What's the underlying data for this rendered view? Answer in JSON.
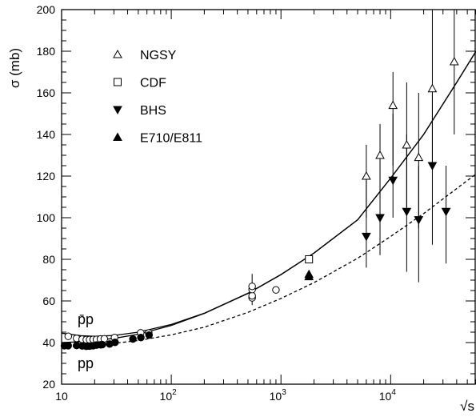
{
  "chart_data": {
    "type": "scatter",
    "title": "",
    "xlabel": "√s",
    "ylabel": "σ (mb)",
    "x_scale": "log",
    "xlim": [
      10,
      60000
    ],
    "ylim": [
      20,
      200
    ],
    "x_ticks": [
      {
        "value": 10,
        "base": "10",
        "exp": ""
      },
      {
        "value": 100,
        "base": "10",
        "exp": "2"
      },
      {
        "value": 1000,
        "base": "10",
        "exp": "3"
      },
      {
        "value": 10000,
        "base": "10",
        "exp": "4"
      }
    ],
    "y_ticks": [
      20,
      40,
      60,
      80,
      100,
      120,
      140,
      160,
      180,
      200
    ],
    "y_tick_labels": [
      "20",
      "40",
      "60",
      "80",
      "100",
      "120",
      "140",
      "160",
      "180",
      "200"
    ],
    "grid": false,
    "legend_position": "top-left",
    "legend": [
      {
        "label": "NGSY",
        "marker": "open-triangle"
      },
      {
        "label": "CDF",
        "marker": "open-square"
      },
      {
        "label": "BHS",
        "marker": "filled-triangle-down"
      },
      {
        "label": "E710/E811",
        "marker": "filled-triangle-up"
      }
    ],
    "annotations": [
      {
        "text": "p̄p",
        "near_x": 11,
        "near_y": 46
      },
      {
        "text": "pp",
        "near_x": 11,
        "near_y": 33
      }
    ],
    "series": [
      {
        "name": "NGSY",
        "marker": "open-triangle",
        "points": [
          {
            "x": 6000,
            "y": 120,
            "ylo": 100,
            "yhi": 135
          },
          {
            "x": 8000,
            "y": 130,
            "ylo": 110,
            "yhi": 145
          },
          {
            "x": 10500,
            "y": 154,
            "ylo": 125,
            "yhi": 170
          },
          {
            "x": 14000,
            "y": 135,
            "ylo": 105,
            "yhi": 165
          },
          {
            "x": 18000,
            "y": 129,
            "ylo": 95,
            "yhi": 160
          },
          {
            "x": 24000,
            "y": 162,
            "ylo": 125,
            "yhi": 200
          },
          {
            "x": 38000,
            "y": 175,
            "ylo": 140,
            "yhi": 200
          }
        ]
      },
      {
        "name": "CDF",
        "marker": "open-square",
        "points": [
          {
            "x": 1800,
            "y": 80.0
          }
        ]
      },
      {
        "name": "BHS",
        "marker": "filled-triangle-down",
        "points": [
          {
            "x": 6000,
            "y": 91,
            "ylo": 76,
            "yhi": 122
          },
          {
            "x": 8000,
            "y": 100,
            "ylo": 82,
            "yhi": 130
          },
          {
            "x": 10500,
            "y": 118,
            "ylo": 100,
            "yhi": 150
          },
          {
            "x": 14000,
            "y": 103,
            "ylo": 74,
            "yhi": 140
          },
          {
            "x": 18000,
            "y": 99,
            "ylo": 69,
            "yhi": 125
          },
          {
            "x": 24000,
            "y": 125,
            "ylo": 87,
            "yhi": 160
          },
          {
            "x": 32000,
            "y": 103,
            "ylo": 78,
            "yhi": 125
          }
        ]
      },
      {
        "name": "E710/E811",
        "marker": "filled-triangle-up",
        "points": [
          {
            "x": 1800,
            "y": 72.8
          },
          {
            "x": 1800,
            "y": 71.7
          }
        ]
      },
      {
        "name": "",
        "marker": "open-circle",
        "points": [
          {
            "x": 11.5,
            "y": 43.0
          },
          {
            "x": 13.7,
            "y": 42.0
          },
          {
            "x": 15.4,
            "y": 41.6
          },
          {
            "x": 16.8,
            "y": 41.4
          },
          {
            "x": 18.0,
            "y": 41.4
          },
          {
            "x": 19.4,
            "y": 41.5
          },
          {
            "x": 20.8,
            "y": 41.5
          },
          {
            "x": 22.6,
            "y": 41.7
          },
          {
            "x": 24.5,
            "y": 41.8
          },
          {
            "x": 30.4,
            "y": 42.4
          },
          {
            "x": 52.6,
            "y": 44.7
          },
          {
            "x": 62.3,
            "y": 44.6
          },
          {
            "x": 546,
            "y": 61.5
          },
          {
            "x": 546,
            "y": 62.5
          },
          {
            "x": 546,
            "y": 65.5
          },
          {
            "x": 546,
            "y": 67.0
          },
          {
            "x": 900,
            "y": 65.3
          }
        ]
      },
      {
        "name": "",
        "marker": "filled-circle",
        "points": [
          {
            "x": 10.6,
            "y": 38.5
          },
          {
            "x": 11.5,
            "y": 38.5
          },
          {
            "x": 13.7,
            "y": 38.6
          },
          {
            "x": 15.4,
            "y": 38.4
          },
          {
            "x": 16.8,
            "y": 38.2
          },
          {
            "x": 18.0,
            "y": 38.3
          },
          {
            "x": 19.4,
            "y": 38.5
          },
          {
            "x": 20.8,
            "y": 38.8
          },
          {
            "x": 22.6,
            "y": 38.9
          },
          {
            "x": 23.5,
            "y": 39.0
          },
          {
            "x": 27.4,
            "y": 39.3
          },
          {
            "x": 30.7,
            "y": 40.1
          },
          {
            "x": 44.7,
            "y": 41.7
          },
          {
            "x": 52.8,
            "y": 42.4
          },
          {
            "x": 62.7,
            "y": 43.6
          }
        ]
      }
    ],
    "error_bars_open_circle": [
      {
        "x": 546,
        "ylo": 58,
        "yhi": 73
      }
    ],
    "curves": [
      {
        "name": "",
        "style": "solid",
        "points": [
          {
            "x": 10,
            "y": 44.5
          },
          {
            "x": 15,
            "y": 43.3
          },
          {
            "x": 20,
            "y": 43.0
          },
          {
            "x": 30,
            "y": 43.4
          },
          {
            "x": 50,
            "y": 45.0
          },
          {
            "x": 100,
            "y": 48.7
          },
          {
            "x": 200,
            "y": 54.1
          },
          {
            "x": 500,
            "y": 63.7
          },
          {
            "x": 1000,
            "y": 72.7
          },
          {
            "x": 2000,
            "y": 83.0
          },
          {
            "x": 5000,
            "y": 99.0
          },
          {
            "x": 10000,
            "y": 119.0
          },
          {
            "x": 20000,
            "y": 140.0
          },
          {
            "x": 40000,
            "y": 165.0
          },
          {
            "x": 60000,
            "y": 180.0
          }
        ]
      },
      {
        "name": "",
        "style": "solid",
        "points": [
          {
            "x": 10,
            "y": 40.0
          },
          {
            "x": 15,
            "y": 40.4
          },
          {
            "x": 20,
            "y": 41.0
          },
          {
            "x": 30,
            "y": 42.0
          },
          {
            "x": 50,
            "y": 44.0
          },
          {
            "x": 100,
            "y": 48.2
          },
          {
            "x": 200,
            "y": 54.0
          },
          {
            "x": 500,
            "y": 63.6
          },
          {
            "x": 1000,
            "y": 72.6
          },
          {
            "x": 2000,
            "y": 83.0
          },
          {
            "x": 5000,
            "y": 99.0
          },
          {
            "x": 10000,
            "y": 119.0
          },
          {
            "x": 20000,
            "y": 140.0
          },
          {
            "x": 40000,
            "y": 165.0
          },
          {
            "x": 60000,
            "y": 180.0
          }
        ]
      },
      {
        "name": "",
        "style": "dashed",
        "points": [
          {
            "x": 10,
            "y": 38.0
          },
          {
            "x": 20,
            "y": 38.5
          },
          {
            "x": 50,
            "y": 41.0
          },
          {
            "x": 100,
            "y": 43.7
          },
          {
            "x": 200,
            "y": 47.4
          },
          {
            "x": 500,
            "y": 54.5
          },
          {
            "x": 1000,
            "y": 61.2
          },
          {
            "x": 2000,
            "y": 68.8
          },
          {
            "x": 5000,
            "y": 80.5
          },
          {
            "x": 10000,
            "y": 91.0
          },
          {
            "x": 20000,
            "y": 102.0
          },
          {
            "x": 40000,
            "y": 114.0
          },
          {
            "x": 60000,
            "y": 121.0
          }
        ]
      }
    ]
  }
}
